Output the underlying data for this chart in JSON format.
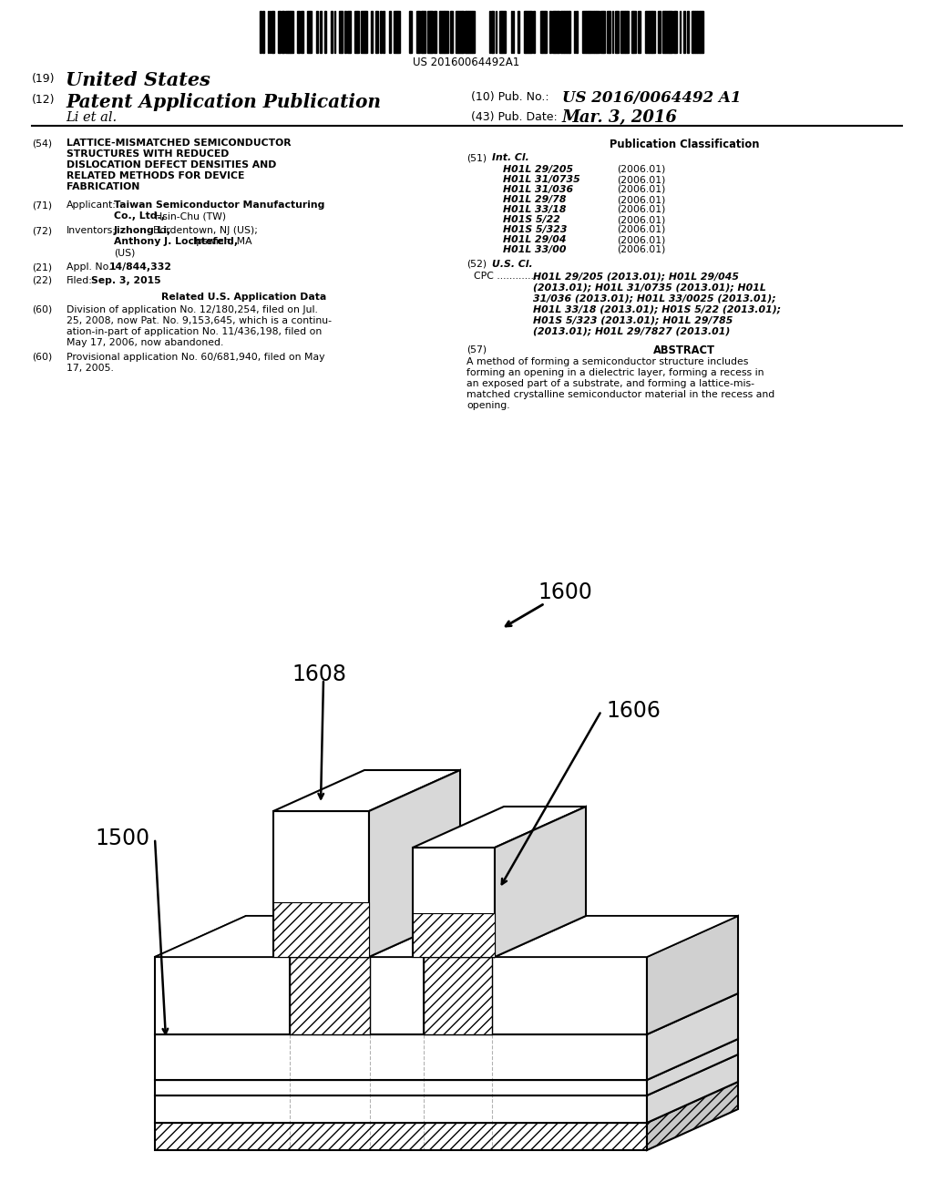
{
  "background_color": "#ffffff",
  "barcode_text": "US 20160064492A1",
  "header": {
    "country": "United States",
    "country_num": "(19)",
    "type": "Patent Application Publication",
    "type_num": "(12)",
    "pub_no_label": "(10) Pub. No.:",
    "pub_no": "US 2016/0064492 A1",
    "inventors": "Li et al.",
    "pub_date_label": "(43) Pub. Date:",
    "pub_date": "Mar. 3, 2016"
  },
  "diagram": {
    "label_1600": "1600",
    "label_1608": "1608",
    "label_1606": "1606",
    "label_1500": "1500"
  }
}
